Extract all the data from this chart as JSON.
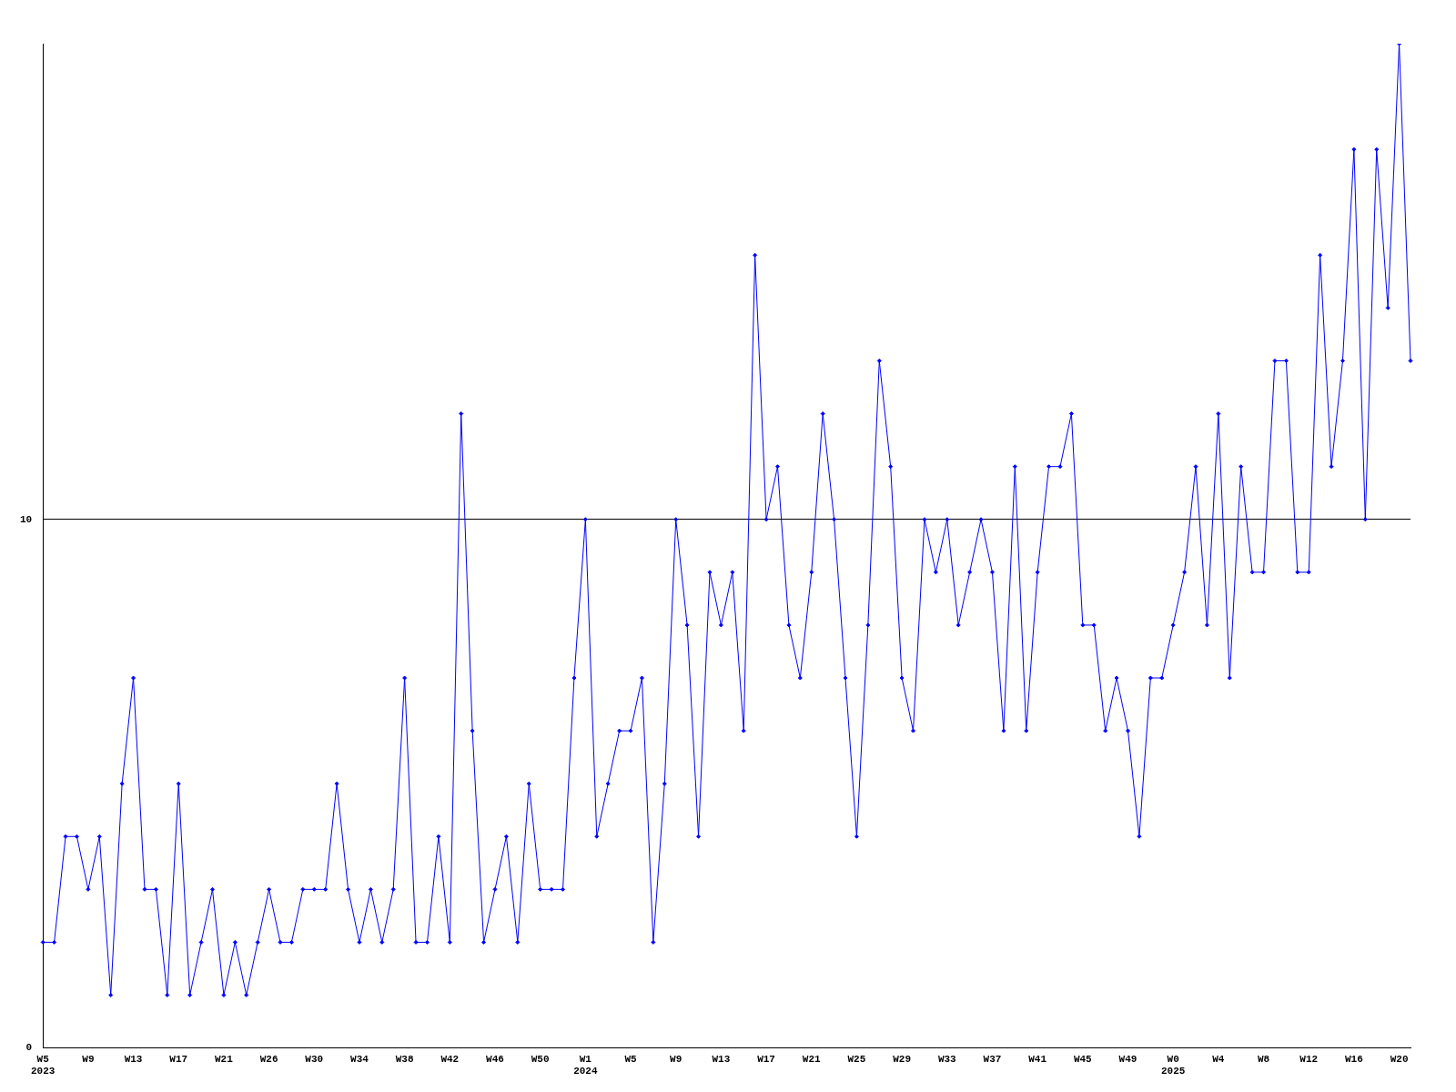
{
  "chart_data": {
    "type": "line",
    "categories": [
      "W5\n2023",
      null,
      null,
      null,
      "W9",
      null,
      null,
      null,
      "W13",
      null,
      null,
      null,
      "W17",
      null,
      null,
      null,
      "W21",
      null,
      null,
      null,
      "W26",
      null,
      null,
      null,
      "W30",
      null,
      null,
      null,
      "W34",
      null,
      null,
      null,
      "W38",
      null,
      null,
      null,
      "W42",
      null,
      null,
      null,
      "W46",
      null,
      null,
      null,
      "W50",
      null,
      null,
      null,
      "W1\n2024",
      null,
      null,
      null,
      "W5",
      null,
      null,
      null,
      "W9",
      null,
      null,
      null,
      "W13",
      null,
      null,
      null,
      "W17",
      null,
      null,
      null,
      "W21",
      null,
      null,
      null,
      "W25",
      null,
      null,
      null,
      "W29",
      null,
      null,
      null,
      "W33",
      null,
      null,
      null,
      "W37",
      null,
      null,
      null,
      "W41",
      null,
      null,
      null,
      "W45",
      null,
      null,
      null,
      "W49",
      null,
      null,
      null,
      "W0\n2025",
      null,
      null,
      null,
      "W4",
      null,
      null,
      null,
      "W8",
      null,
      null,
      null,
      "W12",
      null,
      null,
      null,
      "W16",
      null,
      null,
      null,
      "W20",
      null
    ],
    "series": [
      {
        "color": "#0000ff",
        "values": [
          2,
          2,
          4,
          4,
          3,
          4,
          1,
          5,
          7,
          3,
          3,
          1,
          5,
          1,
          2,
          3,
          1,
          2,
          1,
          2,
          3,
          2,
          2,
          3,
          3,
          3,
          5,
          3,
          2,
          3,
          2,
          3,
          7,
          2,
          2,
          4,
          2,
          12,
          6,
          2,
          3,
          4,
          2,
          5,
          3,
          3,
          3,
          7,
          10,
          4,
          5,
          6,
          6,
          7,
          2,
          5,
          10,
          8,
          4,
          9,
          8,
          9,
          6,
          15,
          10,
          11,
          8,
          7,
          9,
          12,
          10,
          7,
          4,
          8,
          13,
          11,
          7,
          6,
          10,
          9,
          10,
          8,
          9,
          10,
          9,
          6,
          11,
          6,
          9,
          11,
          11,
          12,
          8,
          8,
          6,
          7,
          6,
          4,
          7,
          7,
          8,
          9,
          11,
          8,
          12,
          7,
          11,
          9,
          9,
          13,
          13,
          9,
          9,
          15,
          11,
          13,
          17,
          10,
          17,
          14,
          19,
          13
        ]
      }
    ],
    "ylim": [
      0,
      19
    ],
    "yticks": [
      0,
      10
    ],
    "grid": "y",
    "legend": false,
    "marker": "diamond",
    "line_style": "solid"
  }
}
